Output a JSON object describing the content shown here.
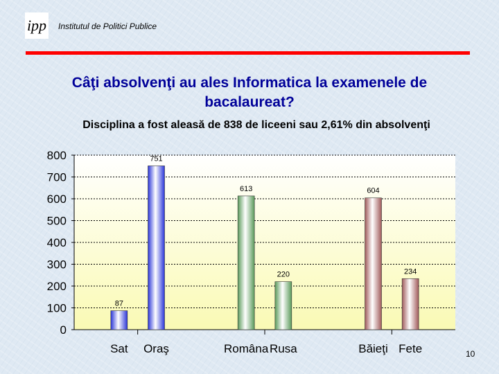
{
  "header": {
    "org_name": "Institutul de Politici Publice",
    "logo_text": "ipp"
  },
  "slide": {
    "title": "Câţi absolvenţi au ales Informatica la examenele de bacalaureat?",
    "subtitle": "Disciplina a fost aleasă de 838 de liceeni sau 2,61% din absolvenţi",
    "page_number": "10"
  },
  "colors": {
    "rule": "#ff0000",
    "title": "#000099",
    "plot_top": "#ffffff",
    "plot_bottom": "#fafab4"
  },
  "chart_data": {
    "type": "bar",
    "title": "",
    "xlabel": "",
    "ylabel": "",
    "ylim": [
      0,
      800
    ],
    "yticks": [
      0,
      100,
      200,
      300,
      400,
      500,
      600,
      700,
      800
    ],
    "categories": [
      "Sat",
      "Oraş",
      "Româna",
      "Rusa",
      "Băieţi",
      "Fete"
    ],
    "values": [
      87,
      751,
      613,
      220,
      604,
      234
    ],
    "bar_colors": [
      "#2a35d8",
      "#2a35d8",
      "#5a9a5a",
      "#5a9a5a",
      "#a05a5a",
      "#a05a5a"
    ],
    "grid": true
  }
}
